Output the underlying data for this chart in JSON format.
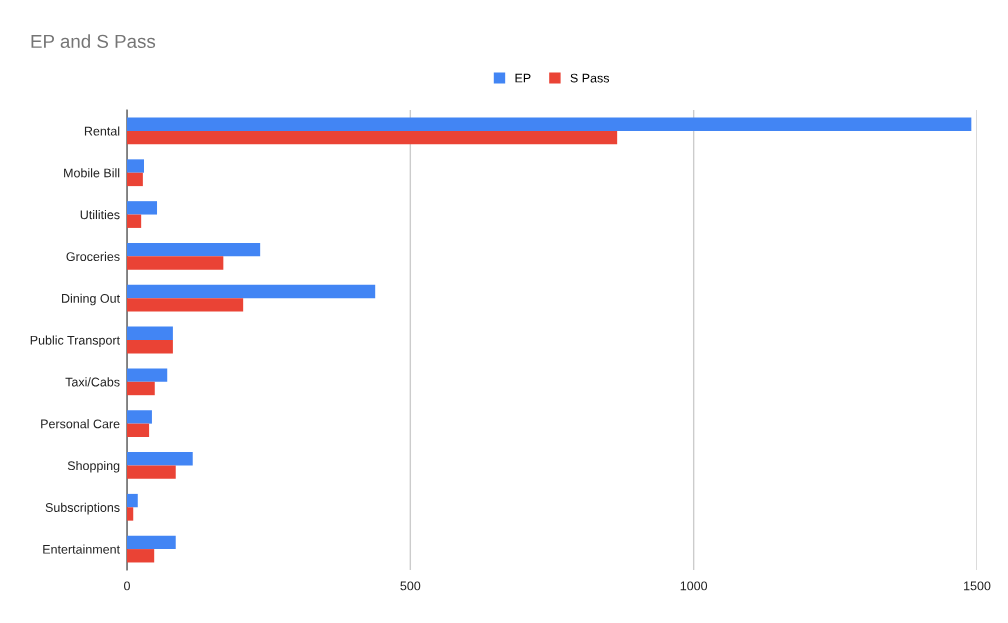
{
  "chart_data": {
    "type": "bar",
    "orientation": "horizontal",
    "title": "EP and S Pass",
    "categories": [
      "Rental",
      "Mobile Bill",
      "Utilities",
      "Groceries",
      "Dining Out",
      "Public Transport",
      "Taxi/Cabs",
      "Personal Care",
      "Shopping",
      "Subscriptions",
      "Entertainment"
    ],
    "series": [
      {
        "name": "EP",
        "color": "#4285f4",
        "values": [
          1490,
          30,
          53,
          235,
          438,
          81,
          71,
          44,
          116,
          19,
          86
        ]
      },
      {
        "name": "S Pass",
        "color": "#ea4335",
        "values": [
          865,
          28,
          25,
          170,
          205,
          81,
          49,
          39,
          86,
          11,
          48
        ]
      }
    ],
    "xlim": [
      0,
      1500
    ],
    "xticks": [
      0,
      500,
      1000,
      1500
    ],
    "grid": "x",
    "legend": "top"
  }
}
